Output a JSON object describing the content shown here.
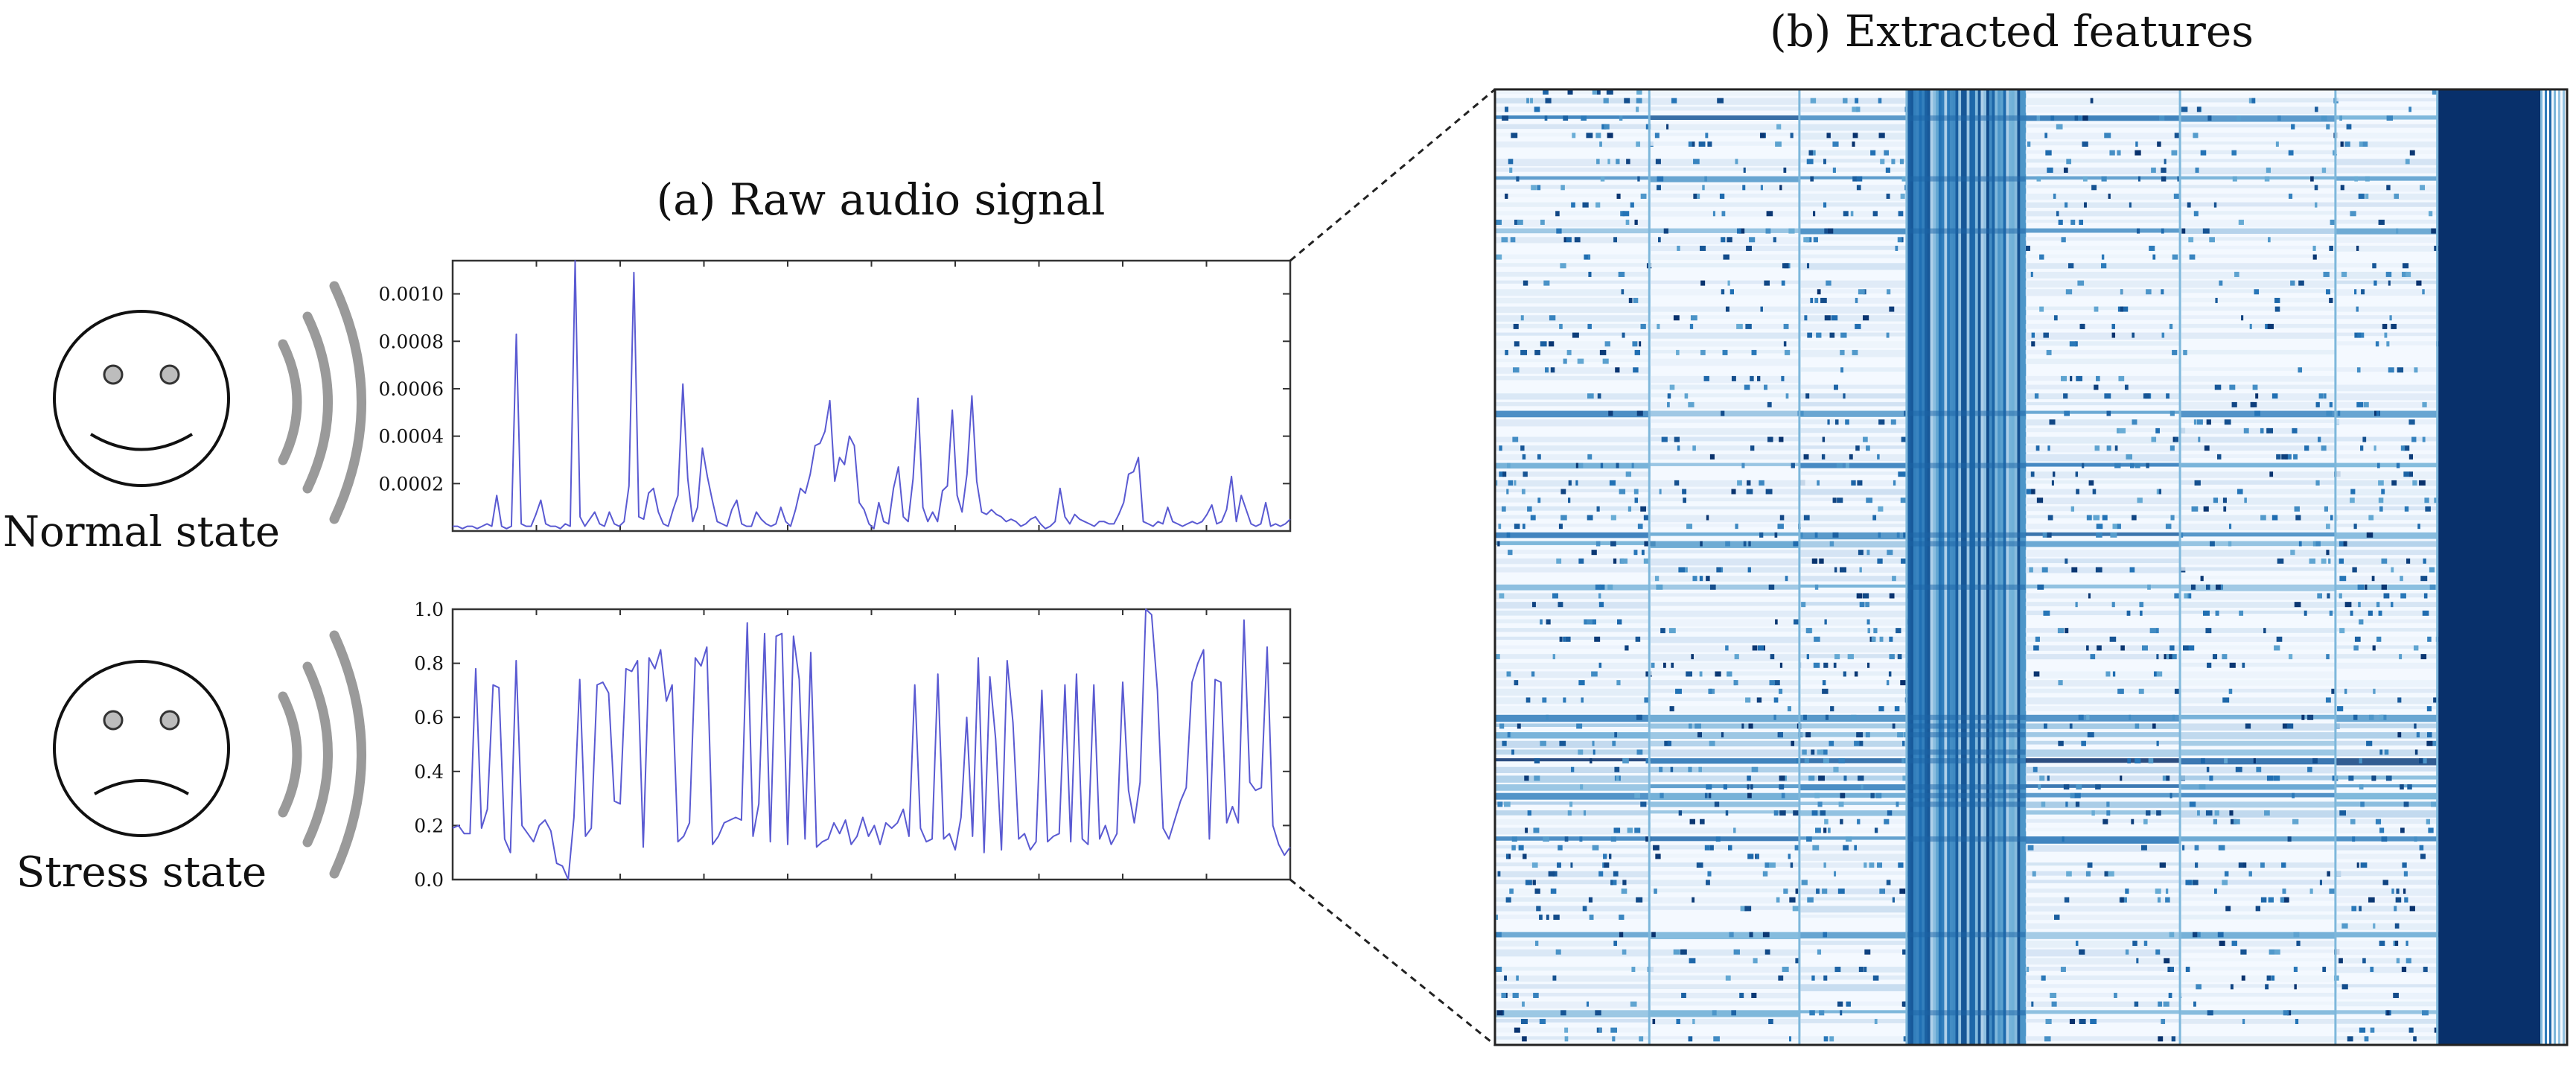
{
  "titles": {
    "raw_audio": "(a) Raw audio signal",
    "features": "(b) Extracted features"
  },
  "states": {
    "normal": "Normal state",
    "stress": "Stress state"
  },
  "icons": {
    "normal": "smiling-face-icon",
    "stress": "frowning-face-icon",
    "waves": "sound-waves-icon"
  },
  "colors": {
    "signal_line": "#5a5ad2",
    "heatmap_dark": "#08306b",
    "heatmap_light": "#f4f9ff",
    "wave_gray": "#9a9a9a"
  },
  "chart_data": [
    {
      "type": "line",
      "title": "",
      "xlabel": "",
      "ylabel": "",
      "x_ticks": false,
      "y_ticks": [
        "0.0002",
        "0.0004",
        "0.0006",
        "0.0008",
        "0.0010"
      ],
      "ylim": [
        0,
        0.00114
      ],
      "grid": false,
      "series": [
        {
          "values": [
            2e-05,
            2e-05,
            1e-05,
            2e-05,
            2e-05,
            1e-05,
            2e-05,
            3e-05,
            2e-05,
            0.00015,
            2e-05,
            1e-05,
            2e-05,
            0.00083,
            3e-05,
            2e-05,
            2e-05,
            7e-05,
            0.00013,
            3e-05,
            2e-05,
            2e-05,
            1e-05,
            3e-05,
            2e-05,
            0.00114,
            6e-05,
            2e-05,
            5e-05,
            8e-05,
            3e-05,
            2e-05,
            8e-05,
            3e-05,
            2e-05,
            4e-05,
            0.00019,
            0.00109,
            6e-05,
            5e-05,
            0.00016,
            0.00018,
            8e-05,
            3e-05,
            2e-05,
            9e-05,
            0.00015,
            0.00062,
            0.00022,
            4e-05,
            0.0001,
            0.00035,
            0.00023,
            0.00013,
            4e-05,
            3e-05,
            2e-05,
            9e-05,
            0.00013,
            3e-05,
            2e-05,
            2e-05,
            8e-05,
            5e-05,
            3e-05,
            2e-05,
            3e-05,
            0.0001,
            4e-05,
            2e-05,
            9e-05,
            0.00018,
            0.00016,
            0.00024,
            0.00036,
            0.00037,
            0.00042,
            0.00055,
            0.00021,
            0.00031,
            0.00028,
            0.0004,
            0.00036,
            0.00012,
            9e-05,
            3e-05,
            1e-05,
            0.00012,
            4e-05,
            3e-05,
            0.00018,
            0.00027,
            6e-05,
            4e-05,
            0.00022,
            0.00056,
            0.0001,
            4e-05,
            8e-05,
            4e-05,
            0.00017,
            0.00019,
            0.00051,
            0.00015,
            8e-05,
            0.00024,
            0.00057,
            0.00021,
            8e-05,
            7e-05,
            9e-05,
            7e-05,
            6e-05,
            4e-05,
            5e-05,
            4e-05,
            2e-05,
            3e-05,
            5e-05,
            6e-05,
            3e-05,
            1e-05,
            2e-05,
            4e-05,
            0.00018,
            6e-05,
            3e-05,
            7e-05,
            5e-05,
            4e-05,
            3e-05,
            2e-05,
            4e-05,
            4e-05,
            3e-05,
            3e-05,
            7e-05,
            0.00012,
            0.00024,
            0.00025,
            0.00031,
            4e-05,
            3e-05,
            2e-05,
            4e-05,
            3e-05,
            0.0001,
            4e-05,
            3e-05,
            2e-05,
            3e-05,
            4e-05,
            3e-05,
            4e-05,
            7e-05,
            0.00011,
            3e-05,
            4e-05,
            9e-05,
            0.00023,
            4e-05,
            0.00015,
            9e-05,
            3e-05,
            2e-05,
            3e-05,
            0.00012,
            2e-05,
            3e-05,
            2e-05,
            3e-05,
            5e-05
          ]
        }
      ]
    },
    {
      "type": "line",
      "title": "",
      "xlabel": "",
      "ylabel": "",
      "x_ticks": false,
      "y_ticks": [
        "0.0",
        "0.2",
        "0.4",
        "0.6",
        "0.8",
        "1.0"
      ],
      "ylim": [
        0,
        1.0
      ],
      "grid": false,
      "series": [
        {
          "values": [
            0.19,
            0.2,
            0.17,
            0.17,
            0.78,
            0.19,
            0.26,
            0.72,
            0.71,
            0.15,
            0.1,
            0.81,
            0.2,
            0.17,
            0.14,
            0.2,
            0.22,
            0.18,
            0.06,
            0.05,
            0.0,
            0.23,
            0.74,
            0.16,
            0.19,
            0.72,
            0.73,
            0.69,
            0.29,
            0.28,
            0.78,
            0.77,
            0.81,
            0.12,
            0.82,
            0.78,
            0.85,
            0.66,
            0.72,
            0.14,
            0.16,
            0.21,
            0.82,
            0.79,
            0.86,
            0.13,
            0.16,
            0.21,
            0.22,
            0.23,
            0.22,
            0.95,
            0.16,
            0.28,
            0.91,
            0.14,
            0.9,
            0.91,
            0.13,
            0.9,
            0.74,
            0.15,
            0.84,
            0.12,
            0.14,
            0.15,
            0.21,
            0.17,
            0.22,
            0.13,
            0.16,
            0.23,
            0.16,
            0.2,
            0.13,
            0.21,
            0.19,
            0.21,
            0.26,
            0.16,
            0.72,
            0.19,
            0.14,
            0.15,
            0.76,
            0.15,
            0.17,
            0.11,
            0.23,
            0.6,
            0.16,
            0.82,
            0.1,
            0.75,
            0.52,
            0.11,
            0.81,
            0.58,
            0.15,
            0.17,
            0.11,
            0.14,
            0.7,
            0.14,
            0.16,
            0.17,
            0.72,
            0.14,
            0.76,
            0.15,
            0.13,
            0.72,
            0.15,
            0.2,
            0.13,
            0.17,
            0.73,
            0.33,
            0.21,
            0.36,
            1.0,
            0.98,
            0.7,
            0.19,
            0.15,
            0.22,
            0.29,
            0.34,
            0.73,
            0.8,
            0.85,
            0.15,
            0.74,
            0.73,
            0.21,
            0.27,
            0.21,
            0.96,
            0.36,
            0.33,
            0.34,
            0.86,
            0.2,
            0.13,
            0.09,
            0.12
          ]
        }
      ]
    },
    {
      "type": "heatmap",
      "title": "",
      "xlabel": "",
      "ylabel": "",
      "grid": false,
      "colormap": "Blues",
      "value_range": [
        0,
        1
      ],
      "values": []
    }
  ]
}
